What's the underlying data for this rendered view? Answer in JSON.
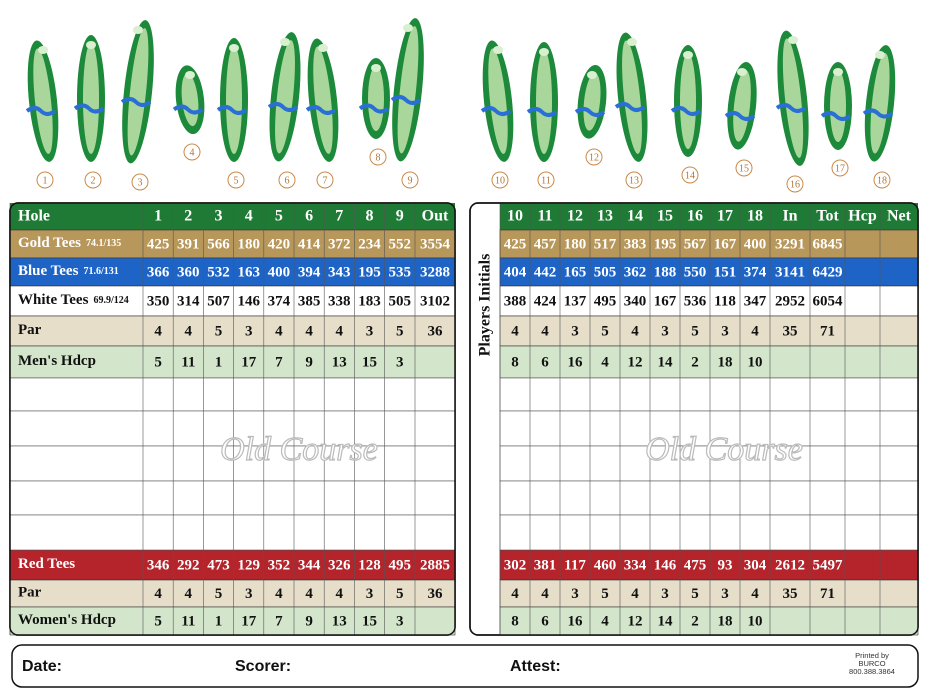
{
  "hole_maps": {
    "front": [
      1,
      2,
      3,
      4,
      5,
      6,
      7,
      8,
      9
    ],
    "back": [
      10,
      11,
      12,
      13,
      14,
      15,
      16,
      17,
      18
    ]
  },
  "watermark": "Old Course",
  "front": {
    "header": [
      "Hole",
      "1",
      "2",
      "3",
      "4",
      "5",
      "6",
      "7",
      "8",
      "9",
      "Out"
    ],
    "rows": [
      {
        "label": "Gold Tees",
        "rating": "74.1/135",
        "values": [
          425,
          391,
          566,
          180,
          420,
          414,
          372,
          234,
          552,
          3554
        ]
      },
      {
        "label": "Blue Tees",
        "rating": "71.6/131",
        "values": [
          366,
          360,
          532,
          163,
          400,
          394,
          343,
          195,
          535,
          3288
        ]
      },
      {
        "label": "White Tees",
        "rating": "69.9/124",
        "values": [
          350,
          314,
          507,
          146,
          374,
          385,
          338,
          183,
          505,
          3102
        ]
      },
      {
        "label": "Par",
        "values": [
          4,
          4,
          5,
          3,
          4,
          4,
          4,
          3,
          5,
          36
        ]
      },
      {
        "label": "Men's Hdcp",
        "values": [
          5,
          11,
          1,
          17,
          7,
          9,
          13,
          15,
          3
        ]
      },
      {
        "label": "Red Tees",
        "values": [
          346,
          292,
          473,
          129,
          352,
          344,
          326,
          128,
          495,
          2885
        ]
      },
      {
        "label": "Par",
        "values": [
          4,
          4,
          5,
          3,
          4,
          4,
          4,
          3,
          5,
          36
        ]
      },
      {
        "label": "Women's Hdcp",
        "values": [
          5,
          11,
          1,
          17,
          7,
          9,
          13,
          15,
          3
        ]
      }
    ]
  },
  "back": {
    "side_label": "Players Initials",
    "header": [
      "10",
      "11",
      "12",
      "13",
      "14",
      "15",
      "16",
      "17",
      "18",
      "In",
      "Tot",
      "Hcp",
      "Net"
    ],
    "rows": [
      {
        "values": [
          425,
          457,
          180,
          517,
          383,
          195,
          567,
          167,
          400,
          3291,
          6845
        ]
      },
      {
        "values": [
          404,
          442,
          165,
          505,
          362,
          188,
          550,
          151,
          374,
          3141,
          6429
        ]
      },
      {
        "values": [
          388,
          424,
          137,
          495,
          340,
          167,
          536,
          118,
          347,
          2952,
          6054
        ]
      },
      {
        "values": [
          4,
          4,
          3,
          5,
          4,
          3,
          5,
          3,
          4,
          35,
          71
        ]
      },
      {
        "values": [
          8,
          6,
          16,
          4,
          12,
          14,
          2,
          18,
          10
        ]
      },
      {
        "values": [
          302,
          381,
          117,
          460,
          334,
          146,
          475,
          93,
          304,
          2612,
          5497
        ]
      },
      {
        "values": [
          4,
          4,
          3,
          5,
          4,
          3,
          5,
          3,
          4,
          35,
          71
        ]
      },
      {
        "values": [
          8,
          6,
          16,
          4,
          12,
          14,
          2,
          18,
          10
        ]
      }
    ]
  },
  "footer": {
    "date": "Date:",
    "scorer": "Scorer:",
    "attest": "Attest:",
    "printer": [
      "Printed by",
      "BURCO",
      "800.388.3864"
    ]
  }
}
